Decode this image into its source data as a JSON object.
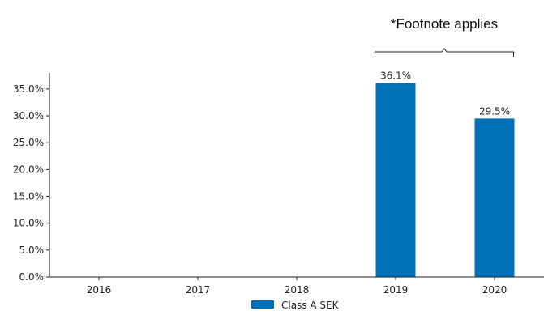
{
  "chart_data": {
    "type": "bar",
    "categories": [
      "2016",
      "2017",
      "2018",
      "2019",
      "2020"
    ],
    "series": [
      {
        "name": "Class A SEK",
        "values": [
          null,
          null,
          null,
          36.1,
          29.5
        ],
        "color": "#0070b8"
      }
    ],
    "data_labels": [
      "",
      "",
      "",
      "36.1%",
      "29.5%"
    ],
    "ylim": [
      0,
      38
    ],
    "yticks": [
      0,
      5,
      10,
      15,
      20,
      25,
      30,
      35
    ],
    "ytick_labels": [
      "0.0%",
      "5.0%",
      "10.0%",
      "15.0%",
      "20.0%",
      "25.0%",
      "30.0%",
      "35.0%"
    ],
    "annotation": {
      "text": "*Footnote applies",
      "spans": [
        "2019",
        "2020"
      ]
    },
    "legend_position": "bottom-center",
    "grid": false
  }
}
